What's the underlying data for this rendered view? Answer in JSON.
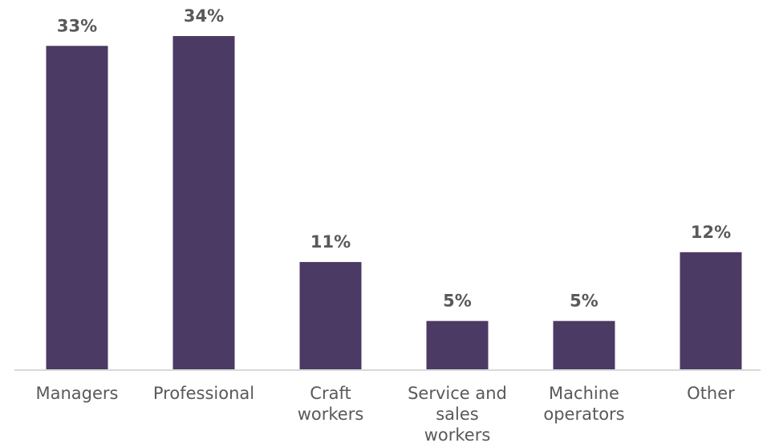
{
  "chart_data": {
    "type": "bar",
    "categories": [
      "Managers",
      "Professional",
      "Craft workers",
      "Service and sales workers",
      "Machine operators",
      "Other"
    ],
    "category_label_lines": [
      [
        "Managers"
      ],
      [
        "Professional"
      ],
      [
        "Craft",
        "workers"
      ],
      [
        "Service and",
        "sales",
        "workers"
      ],
      [
        "Machine",
        "operators"
      ],
      [
        "Other"
      ]
    ],
    "values": [
      33,
      34,
      11,
      5,
      5,
      12
    ],
    "data_labels": [
      "33%",
      "34%",
      "11%",
      "5%",
      "5%",
      "12%"
    ],
    "unit": "%",
    "title": "",
    "xlabel": "",
    "ylabel": "",
    "ylim": [
      0,
      34
    ],
    "grid": false,
    "legend": "none",
    "bar_color": "#4b3a63",
    "label_color": "#595959",
    "axis_color": "#d9d9d9"
  }
}
